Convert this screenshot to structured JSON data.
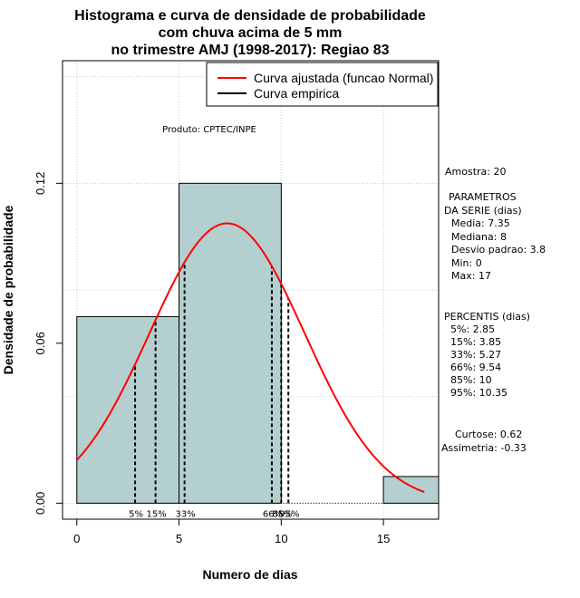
{
  "title_lines": [
    "Histograma e curva de densidade de probabilidade",
    "com chuva acima de 5 mm",
    "no trimestre AMJ (1998-2017): Regiao 83"
  ],
  "product_label": "Produto: CPTEC/INPE",
  "legend": {
    "items": [
      {
        "label": "Curva ajustada (funcao Normal)",
        "color": "#ff0000"
      },
      {
        "label": "Curva empirica",
        "color": "#000000"
      }
    ]
  },
  "stats": {
    "amostra": "Amostra: 20",
    "params_header": [
      "PARAMETROS",
      "DA SERIE (dias)"
    ],
    "params": [
      "Media: 7.35",
      "Mediana: 8",
      "Desvio padrao: 3.8",
      "Min: 0",
      "Max: 17"
    ],
    "percentis_header": "PERCENTIS (dias)",
    "percentis": [
      "5%: 2.85",
      "15%: 3.85",
      "33%: 5.27",
      "66%: 9.54",
      "85%: 10",
      "95%: 10.35"
    ],
    "curtose": "Curtose: 0.62",
    "assimetria": "Assimetria: -0.33"
  },
  "chart_data": {
    "type": "histogram",
    "xlabel": "Numero de dias",
    "ylabel": "Densidade de probabilidade",
    "xlim": [
      -0.7,
      17.7
    ],
    "ylim": [
      -0.006,
      0.166
    ],
    "x_ticks": [
      0,
      5,
      10,
      15
    ],
    "y_ticks": [
      0.0,
      0.06,
      0.12
    ],
    "y_tick_labels": [
      "0.00",
      "0.06",
      "0.12"
    ],
    "grid": true,
    "legend_position": "top-right",
    "bar_color": "#b4cfcf",
    "bins": [
      {
        "x0": 0,
        "x1": 5,
        "density": 0.07
      },
      {
        "x0": 5,
        "x1": 10,
        "density": 0.12
      },
      {
        "x0": 10,
        "x1": 15,
        "density": 0.0
      },
      {
        "x0": 15,
        "x1": 17.7,
        "density": 0.01
      }
    ],
    "normal_fit": {
      "mean": 7.35,
      "sd": 3.8,
      "x_from": 0,
      "x_to": 17,
      "color": "#ff0000"
    },
    "percentiles": [
      {
        "label": "5%",
        "value": 2.85
      },
      {
        "label": "15%",
        "value": 3.85
      },
      {
        "label": "33%",
        "value": 5.27
      },
      {
        "label": "66%",
        "value": 9.54
      },
      {
        "label": "85%",
        "value": 10
      },
      {
        "label": "95%",
        "value": 10.35
      }
    ]
  }
}
